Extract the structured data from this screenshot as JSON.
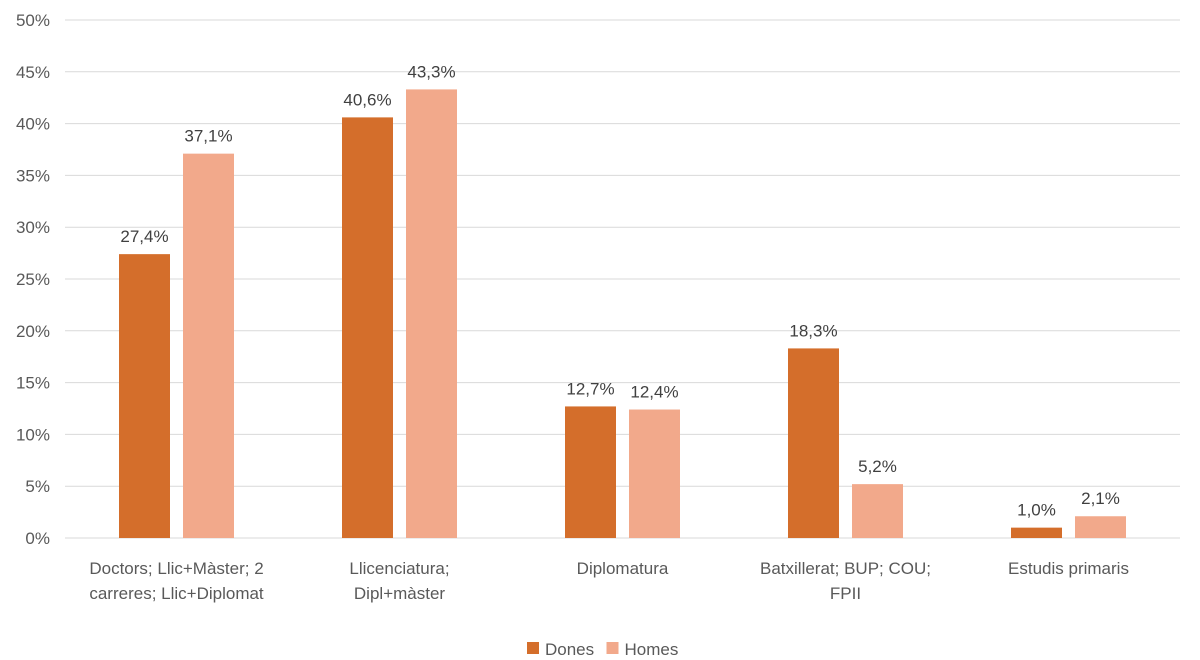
{
  "chart_data": {
    "type": "bar",
    "categories": [
      [
        "Doctors; Llic+Màster; 2",
        "carreres; Llic+Diplomat"
      ],
      [
        "Llicenciatura;",
        "Dipl+màster"
      ],
      [
        "Diplomatura"
      ],
      [
        "Batxillerat; BUP; COU;",
        "FPII"
      ],
      [
        "Estudis primaris"
      ]
    ],
    "series": [
      {
        "name": "Dones",
        "color": "#d46e2b",
        "values": [
          27.4,
          40.6,
          12.7,
          18.3,
          1.0
        ],
        "labels": [
          "27,4%",
          "40,6%",
          "12,7%",
          "18,3%",
          "1,0%"
        ]
      },
      {
        "name": "Homes",
        "color": "#f2a98b",
        "values": [
          37.1,
          43.3,
          12.4,
          5.2,
          2.1
        ],
        "labels": [
          "37,1%",
          "43,3%",
          "12,4%",
          "5,2%",
          "2,1%"
        ]
      }
    ],
    "ylim": [
      0,
      50
    ],
    "yticks": [
      0,
      5,
      10,
      15,
      20,
      25,
      30,
      35,
      40,
      45,
      50
    ],
    "ytick_labels": [
      "0%",
      "5%",
      "10%",
      "15%",
      "20%",
      "25%",
      "30%",
      "35%",
      "40%",
      "45%",
      "50%"
    ],
    "grid": true,
    "legend": "bottom-center",
    "title": "",
    "xlabel": "",
    "ylabel": ""
  }
}
